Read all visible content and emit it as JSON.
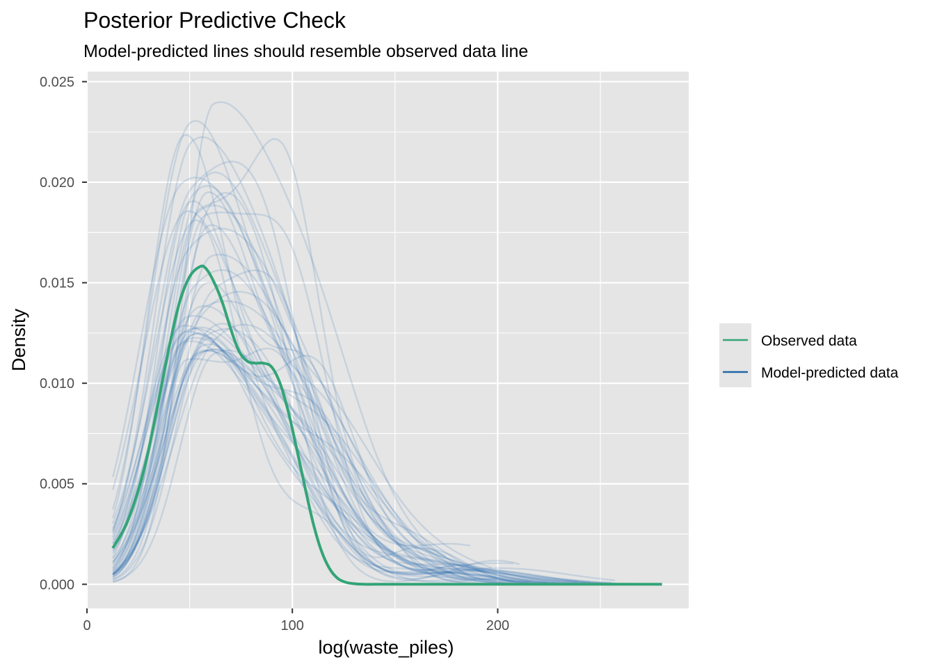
{
  "chart_data": {
    "type": "line",
    "title": "Posterior Predictive Check",
    "subtitle": "Model-predicted lines should resemble observed data line",
    "xlabel": "log(waste_piles)",
    "ylabel": "Density",
    "xlim": [
      0,
      293
    ],
    "ylim": [
      -0.0012,
      0.0255
    ],
    "x_ticks": [
      0,
      100,
      200
    ],
    "x_tick_labels": [
      "0",
      "100",
      "200"
    ],
    "y_ticks": [
      0.0,
      0.005,
      0.01,
      0.015,
      0.02,
      0.025
    ],
    "y_tick_labels": [
      "0.000",
      "0.005",
      "0.010",
      "0.015",
      "0.020",
      "0.025"
    ],
    "grid": true,
    "legend_position": "right",
    "legend": [
      {
        "label": "Observed data",
        "color": "#33A477"
      },
      {
        "label": "Model-predicted data",
        "color": "#1F66A6"
      }
    ],
    "colors": {
      "observed": "#33A477",
      "predicted": "#2D72B0",
      "panel": "#E5E5E5",
      "grid": "#FFFFFF"
    },
    "observed_series": {
      "name": "Observed data",
      "x": [
        12.6,
        20,
        28,
        35,
        40,
        45,
        50,
        55,
        58,
        62,
        66,
        70,
        74,
        78,
        82,
        86,
        90,
        94,
        98,
        102,
        106,
        110,
        114,
        118,
        122,
        126,
        130,
        135,
        140,
        150,
        170,
        200,
        240,
        280
      ],
      "y": [
        0.0018,
        0.0032,
        0.0058,
        0.0092,
        0.0118,
        0.014,
        0.0153,
        0.0158,
        0.0157,
        0.015,
        0.014,
        0.0127,
        0.0116,
        0.0111,
        0.011,
        0.011,
        0.0108,
        0.01,
        0.0086,
        0.0068,
        0.0049,
        0.0031,
        0.0017,
        0.0008,
        0.0003,
        0.0001,
        3e-05,
        0.0,
        0.0,
        0.0,
        0.0,
        0.0,
        0.0,
        0.0
      ]
    },
    "predicted_series": {
      "name": "Model-predicted data",
      "count": 45,
      "x_range": [
        12.6,
        280
      ],
      "peak_x_range": [
        46,
        62
      ],
      "peak_density_range": [
        0.0116,
        0.0243
      ]
    }
  }
}
